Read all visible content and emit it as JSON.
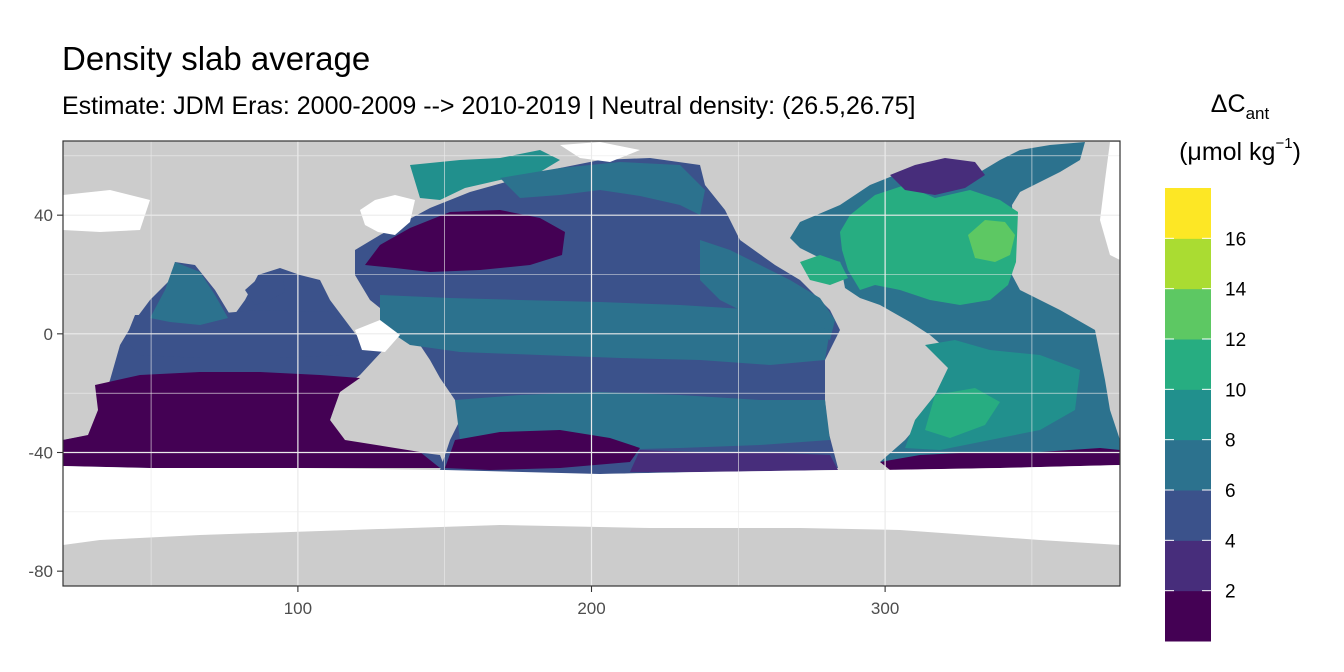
{
  "title": "Density slab average",
  "subtitle": "Estimate: JDM Eras: 2000-2009 --> 2010-2019 | Neutral density: (26.5,26.75]",
  "map": {
    "xlim": [
      20,
      380
    ],
    "ylim": [
      -85,
      65
    ],
    "x_ticks": [
      100,
      200,
      300
    ],
    "y_ticks": [
      40,
      0,
      -40,
      -80
    ],
    "grid": true,
    "land_color": "#cccccc",
    "grid_color": "#ebebeb",
    "no_data_color": "#ffffff"
  },
  "legend": {
    "title_main": "ΔC",
    "title_sub": "ant",
    "unit_prefix": "(μmol kg",
    "unit_sup": "−1",
    "unit_suffix": ")",
    "placement": "right",
    "breaks": [
      2,
      4,
      6,
      8,
      10,
      12,
      14,
      16
    ],
    "bins": [
      {
        "color": "#440154"
      },
      {
        "color": "#472d7b"
      },
      {
        "color": "#3b528b"
      },
      {
        "color": "#2c728e"
      },
      {
        "color": "#21908d"
      },
      {
        "color": "#27ad81"
      },
      {
        "color": "#5dc863"
      },
      {
        "color": "#aadc32"
      },
      {
        "color": "#fde725"
      }
    ]
  }
}
